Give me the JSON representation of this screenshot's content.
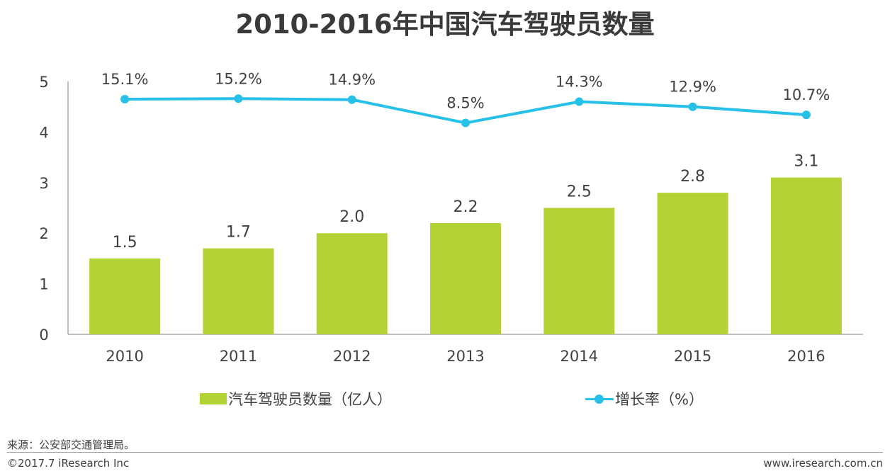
{
  "title": "2010-2016年中国汽车驾驶员数量",
  "chart_data": {
    "type": "bar",
    "categories": [
      "2010",
      "2011",
      "2012",
      "2013",
      "2014",
      "2015",
      "2016"
    ],
    "series": [
      {
        "name": "汽车驾驶员数量（亿人）",
        "type": "bar",
        "values": [
          1.5,
          1.7,
          2.0,
          2.2,
          2.5,
          2.8,
          3.1
        ],
        "color": "#b3d334"
      },
      {
        "name": "增长率（%）",
        "type": "line",
        "values": [
          15.1,
          15.2,
          14.9,
          8.5,
          14.3,
          12.9,
          10.7
        ],
        "color": "#27c0e8"
      }
    ],
    "value_labels": [
      "1.5",
      "1.7",
      "2.0",
      "2.2",
      "2.5",
      "2.8",
      "3.1"
    ],
    "rate_labels": [
      "15.1%",
      "15.2%",
      "14.9%",
      "8.5%",
      "14.3%",
      "12.9%",
      "10.7%"
    ],
    "line_positions": [
      4.65,
      4.66,
      4.64,
      4.18,
      4.6,
      4.5,
      4.34
    ],
    "ylim": [
      0,
      5
    ],
    "yticks": [
      "0",
      "1",
      "2",
      "3",
      "4",
      "5"
    ],
    "xlabel": "",
    "ylabel": ""
  },
  "legend": {
    "bar_label": "汽车驾驶员数量（亿人）",
    "line_label": "增长率（%）"
  },
  "footer": {
    "source": "来源：公安部交通管理局。",
    "copyright": "©2017.7 iResearch Inc",
    "website": "www.iresearch.com.cn"
  }
}
